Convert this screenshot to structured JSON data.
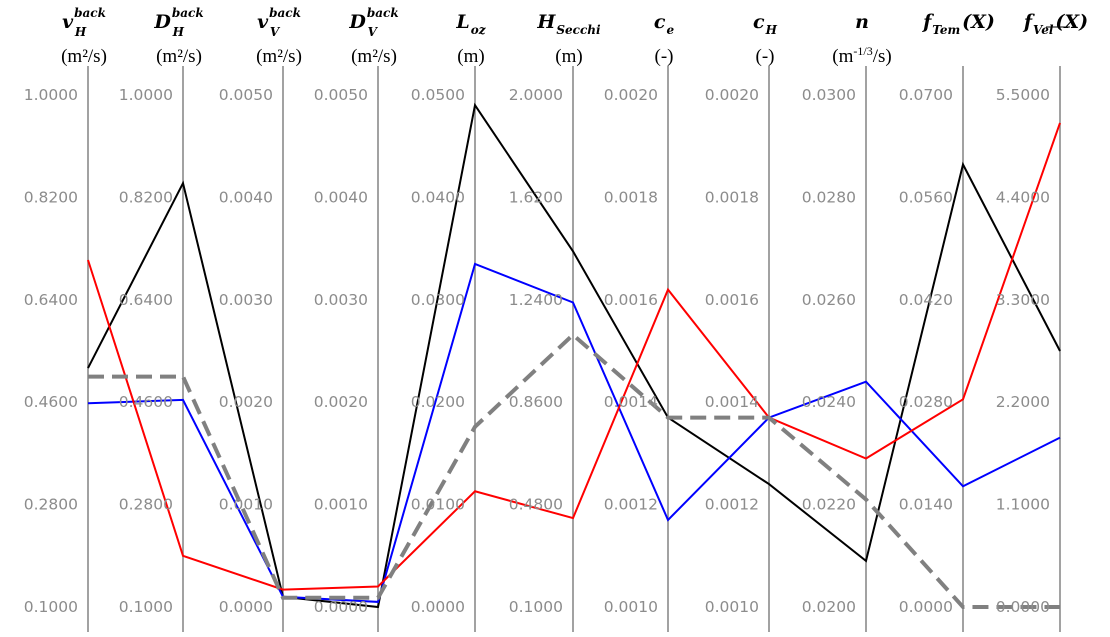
{
  "chart_data": {
    "type": "parallel-coordinates",
    "axes": [
      {
        "name": "v",
        "sup": "back",
        "sub": "H",
        "unit": "(m²/s)",
        "ticks": [
          "1.0000",
          "0.8200",
          "0.6400",
          "0.4600",
          "0.2800",
          "0.1000"
        ],
        "range": [
          0.1,
          1.0
        ]
      },
      {
        "name": "D",
        "sup": "back",
        "sub": "H",
        "unit": "(m²/s)",
        "ticks": [
          "1.0000",
          "0.8200",
          "0.6400",
          "0.4600",
          "0.2800",
          "0.1000"
        ],
        "range": [
          0.1,
          1.0
        ]
      },
      {
        "name": "v",
        "sup": "back",
        "sub": "V",
        "unit": "(m²/s)",
        "ticks": [
          "0.0050",
          "0.0040",
          "0.0030",
          "0.0020",
          "0.0010",
          "0.0000"
        ],
        "range": [
          0.0,
          0.005
        ]
      },
      {
        "name": "D",
        "sup": "back",
        "sub": "V",
        "unit": "(m²/s)",
        "ticks": [
          "0.0050",
          "0.0040",
          "0.0030",
          "0.0020",
          "0.0010",
          "0.0000"
        ],
        "range": [
          0.0,
          0.005
        ]
      },
      {
        "name": "L",
        "sup": "",
        "sub": "oz",
        "unit": "(m)",
        "ticks": [
          "0.0500",
          "0.0400",
          "0.0300",
          "0.0200",
          "0.0100",
          "0.0000"
        ],
        "range": [
          0.0,
          0.05
        ]
      },
      {
        "name": "H",
        "sup": "",
        "sub": "Secchi",
        "unit": "(m)",
        "ticks": [
          "2.0000",
          "1.6200",
          "1.2400",
          "0.8600",
          "0.4800",
          "0.1000"
        ],
        "range": [
          0.1,
          2.0
        ]
      },
      {
        "name": "c",
        "sup": "",
        "sub": "e",
        "unit": "(-)",
        "ticks": [
          "0.0020",
          "0.0018",
          "0.0016",
          "0.0014",
          "0.0012",
          "0.0010"
        ],
        "range": [
          0.001,
          0.002
        ]
      },
      {
        "name": "c",
        "sup": "",
        "sub": "H",
        "unit": "(-)",
        "ticks": [
          "0.0020",
          "0.0018",
          "0.0016",
          "0.0014",
          "0.0012",
          "0.0010"
        ],
        "range": [
          0.001,
          0.002
        ]
      },
      {
        "name": "n",
        "sup": "",
        "sub": "",
        "unit": "(m-1/3/s)",
        "unit_base": "(m",
        "unit_sup": "-1/3",
        "unit_tail": "/s)",
        "ticks": [
          "0.0300",
          "0.0280",
          "0.0260",
          "0.0240",
          "0.0220",
          "0.0200"
        ],
        "range": [
          0.02,
          0.03
        ]
      },
      {
        "name": "f",
        "sup": "",
        "sub": "Tem",
        "arg": "(X)",
        "unit": "",
        "ticks": [
          "0.0700",
          "0.0560",
          "0.0420",
          "0.0280",
          "0.0140",
          "0.0000"
        ],
        "range": [
          0.0,
          0.07
        ]
      },
      {
        "name": "f",
        "sup": "",
        "sub": "Vel",
        "sub_arrow": true,
        "arg": "(X)",
        "unit": "",
        "ticks": [
          "5.5000",
          "4.4000",
          "3.3000",
          "2.2000",
          "1.1000",
          "0.0000"
        ],
        "range": [
          0.0,
          5.5
        ]
      }
    ],
    "series": [
      {
        "color": "#000000",
        "dash": false,
        "values": [
          0.52,
          0.845,
          0.0001,
          0.0,
          0.049,
          1.42,
          0.00137,
          0.00124,
          0.0209,
          0.0605,
          2.75
        ]
      },
      {
        "color": "#0000ff",
        "dash": false,
        "values": [
          0.458,
          0.464,
          0.0001,
          5e-05,
          0.0335,
          1.23,
          0.00117,
          0.00137,
          0.0244,
          0.0165,
          1.82
        ]
      },
      {
        "color": "#ff0000",
        "dash": false,
        "values": [
          0.71,
          0.19,
          0.00017,
          0.0002,
          0.0113,
          0.43,
          0.00162,
          0.00137,
          0.0229,
          0.0284,
          5.2
        ]
      },
      {
        "color": "#808080",
        "dash": true,
        "values": [
          0.505,
          0.505,
          9e-05,
          9e-05,
          0.0176,
          1.11,
          0.00137,
          0.00137,
          0.0221,
          0.0,
          0.0
        ]
      }
    ]
  }
}
